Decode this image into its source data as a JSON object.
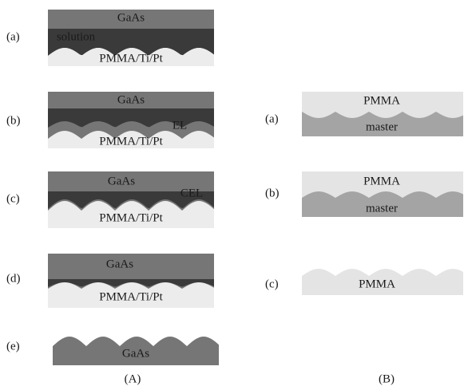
{
  "panels": [
    {
      "caption": "(A)",
      "steps": [
        {
          "label": "(a)",
          "layers": [
            "GaAs",
            "solution",
            "PMMA/Ti/Pt"
          ]
        },
        {
          "label": "(b)",
          "layers": [
            "GaAs",
            "EL",
            "PMMA/Ti/Pt"
          ]
        },
        {
          "label": "(c)",
          "layers": [
            "GaAs",
            "CEL",
            "PMMA/Ti/Pt"
          ]
        },
        {
          "label": "(d)",
          "layers": [
            "GaAs",
            "PMMA/Ti/Pt"
          ]
        },
        {
          "label": "(e)",
          "layers": [
            "GaAs"
          ]
        }
      ]
    },
    {
      "caption": "(B)",
      "steps": [
        {
          "label": "(a)",
          "layers": [
            "PMMA",
            "master"
          ]
        },
        {
          "label": "(b)",
          "layers": [
            "PMMA",
            "master"
          ]
        },
        {
          "label": "(c)",
          "layers": [
            "PMMA"
          ]
        }
      ]
    }
  ]
}
